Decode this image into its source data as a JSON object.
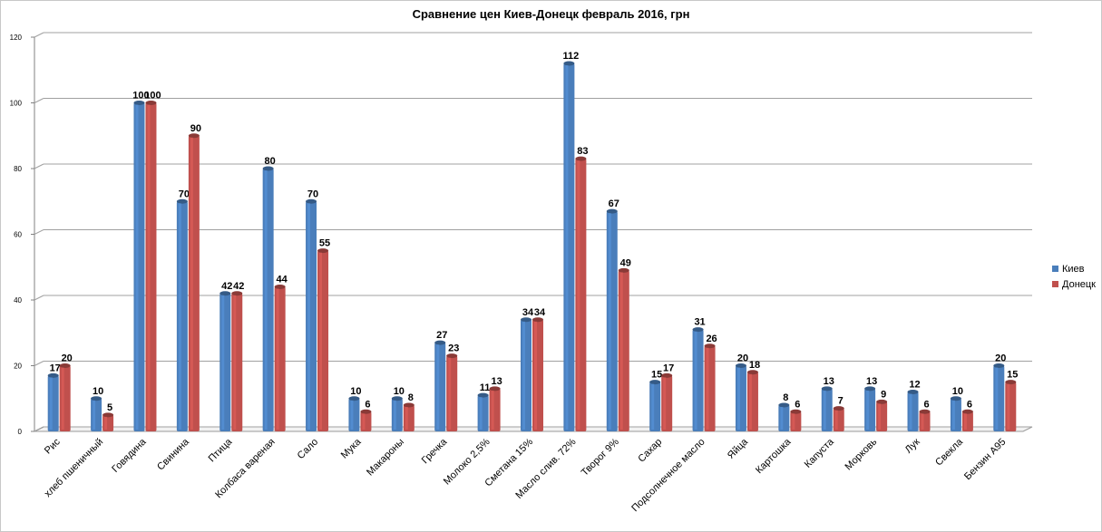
{
  "chart_data": {
    "type": "bar",
    "title": "Сравнение цен Киев-Донецк февраль 2016, грн",
    "xlabel": "",
    "ylabel": "",
    "ylim": [
      0,
      120
    ],
    "yticks": [
      0,
      20,
      40,
      60,
      80,
      100,
      120
    ],
    "grid": true,
    "legend_position": "right",
    "categories": [
      "Рис",
      "хлеб пшеничный",
      "Говядина",
      "Свинина",
      "Птица",
      "Колбаса вареная",
      "Сало",
      "Мука",
      "Макароны",
      "Гречка",
      "Молоко 2,5%",
      "Сметана 15%",
      "Масло слив. 72%",
      "Творог 9%",
      "Сахар",
      "Подсолнечное масло",
      "Яйца",
      "Картошка",
      "Капуста",
      "Морковь",
      "Лук",
      "Свекла",
      "Бензин А95"
    ],
    "series": [
      {
        "name": "Киев",
        "color": "#4a7ebb",
        "values": [
          17,
          10,
          100,
          70,
          42,
          80,
          70,
          10,
          10,
          27,
          11,
          34,
          112,
          67,
          15,
          31,
          20,
          8,
          13,
          13,
          12,
          10,
          20
        ]
      },
      {
        "name": "Донецк",
        "color": "#c0504d",
        "values": [
          20,
          5,
          100,
          90,
          42,
          44,
          55,
          6,
          8,
          23,
          13,
          34,
          83,
          49,
          17,
          26,
          18,
          6,
          7,
          9,
          6,
          6,
          15
        ]
      }
    ]
  }
}
